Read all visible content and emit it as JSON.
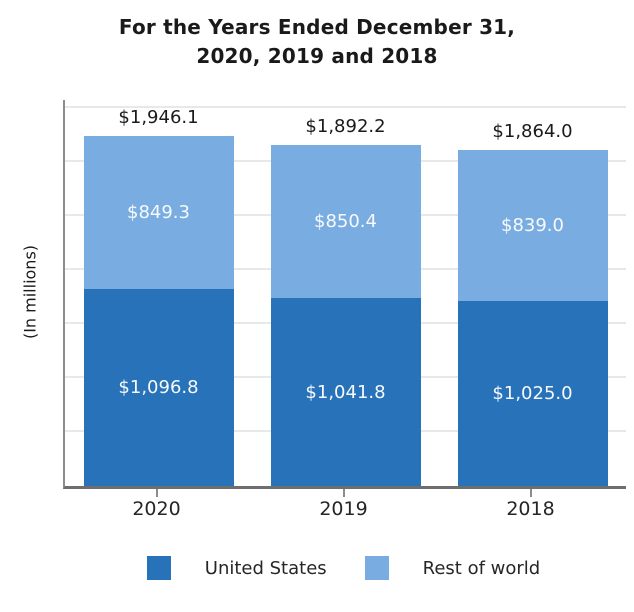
{
  "title": {
    "line1": "For the Years Ended December 31,",
    "line2": "2020, 2019 and 2018"
  },
  "y_axis_label": "(In millions)",
  "legend": [
    {
      "label": "United States",
      "color": "#2772b8"
    },
    {
      "label": "Rest of world",
      "color": "#79ade1"
    }
  ],
  "colors": {
    "united_states": "#2772b8",
    "rest_of_world": "#79ade1",
    "gridline": "#e8e8e8",
    "bottom_axis": "#6e6e6e",
    "left_spine": "#8c8c8c",
    "title_text": "#1a1a1a",
    "tick_text": "#262626",
    "segment_label_text": "#ffffff"
  },
  "chart_data": {
    "type": "bar",
    "stacked": true,
    "title": "For the Years Ended December 31, 2020, 2019 and 2018",
    "xlabel": "",
    "ylabel": "(In millions)",
    "categories": [
      "2020",
      "2019",
      "2018"
    ],
    "series": [
      {
        "name": "United States",
        "color": "#2772b8",
        "values": [
          1096.8,
          1041.8,
          1025.0
        ],
        "labels": [
          "$1,096.8",
          "$1,041.8",
          "$1,025.0"
        ]
      },
      {
        "name": "Rest of world",
        "color": "#79ade1",
        "values": [
          849.3,
          850.4,
          839.0
        ],
        "labels": [
          "$849.3",
          "$850.4",
          "$839.0"
        ]
      }
    ],
    "totals": [
      1946.1,
      1892.2,
      1864.0
    ],
    "total_labels": [
      "$1,946.1",
      "$1,892.2",
      "$1,864.0"
    ],
    "ylim": [
      0,
      2144
    ],
    "grid": true,
    "grid_interval": 300,
    "legend_position": "bottom",
    "bar_width_fraction": 0.8
  }
}
